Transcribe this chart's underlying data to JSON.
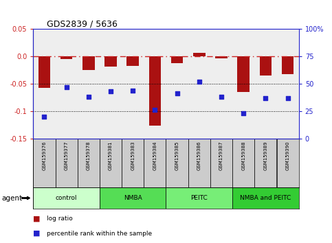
{
  "title": "GDS2839 / 5636",
  "samples": [
    "GSM159376",
    "GSM159377",
    "GSM159378",
    "GSM159381",
    "GSM159383",
    "GSM159384",
    "GSM159385",
    "GSM159386",
    "GSM159387",
    "GSM159388",
    "GSM159389",
    "GSM159390"
  ],
  "log_ratio": [
    -0.057,
    -0.005,
    -0.025,
    -0.018,
    -0.017,
    -0.127,
    -0.012,
    0.007,
    -0.004,
    -0.065,
    -0.035,
    -0.032
  ],
  "percentile_rank": [
    20,
    47,
    38,
    43,
    44,
    26,
    41,
    52,
    38,
    23,
    37,
    37
  ],
  "bar_color": "#aa1111",
  "dot_color": "#2222cc",
  "ylim_left": [
    -0.15,
    0.05
  ],
  "ylim_right": [
    0,
    100
  ],
  "yticks_left": [
    -0.15,
    -0.1,
    -0.05,
    0.0,
    0.05
  ],
  "yticks_right": [
    0,
    25,
    50,
    75,
    100
  ],
  "hline_y": 0.0,
  "hline_color": "#cc2222",
  "hline_style": "-.",
  "dotted_lines": [
    -0.05,
    -0.1
  ],
  "dotted_color": "black",
  "groups": [
    {
      "label": "control",
      "start": 0,
      "end": 3,
      "color": "#ccffcc"
    },
    {
      "label": "NMBA",
      "start": 3,
      "end": 6,
      "color": "#55dd55"
    },
    {
      "label": "PEITC",
      "start": 6,
      "end": 9,
      "color": "#77ee77"
    },
    {
      "label": "NMBA and PEITC",
      "start": 9,
      "end": 12,
      "color": "#33cc33"
    }
  ],
  "agent_label": "agent",
  "legend_bar_label": "log ratio",
  "legend_dot_label": "percentile rank within the sample",
  "left_tick_color": "#cc2222",
  "right_axis_color": "#2222cc",
  "background_plot": "#eeeeee",
  "bar_width": 0.55,
  "sample_bg": "#cccccc"
}
